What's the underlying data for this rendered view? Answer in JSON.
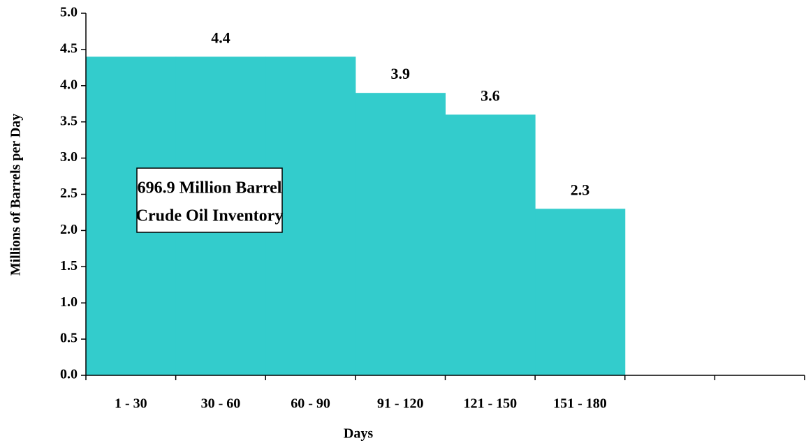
{
  "chart_data": {
    "type": "bar",
    "categories": [
      "1 - 30",
      "30 - 60",
      "60 - 90",
      "91 - 120",
      "121 - 150",
      "151 - 180",
      null,
      null
    ],
    "values": [
      4.4,
      4.4,
      4.4,
      3.9,
      3.6,
      2.3,
      null,
      null
    ],
    "value_labels": [
      null,
      "4.4",
      null,
      "3.9",
      "3.6",
      "2.3",
      null,
      null
    ],
    "color": "#33cccc",
    "ylim": [
      0,
      5
    ],
    "yticks": [
      {
        "value": 0,
        "label": "0.0"
      },
      {
        "value": 0.5,
        "label": "0.5"
      },
      {
        "value": 1,
        "label": "1.0"
      },
      {
        "value": 1.5,
        "label": "1.5"
      },
      {
        "value": 2,
        "label": "2.0"
      },
      {
        "value": 2.5,
        "label": "2.5"
      },
      {
        "value": 3,
        "label": "3.0"
      },
      {
        "value": 3.5,
        "label": "3.5"
      },
      {
        "value": 4,
        "label": "4.0"
      },
      {
        "value": 4.5,
        "label": "4.5"
      },
      {
        "value": 5,
        "label": "5.0"
      }
    ],
    "xlabel": "Days",
    "ylabel": "Millions of Barrels per Day",
    "annotation": [
      "696.9 Million Barrel",
      "Crude Oil Inventory"
    ]
  }
}
